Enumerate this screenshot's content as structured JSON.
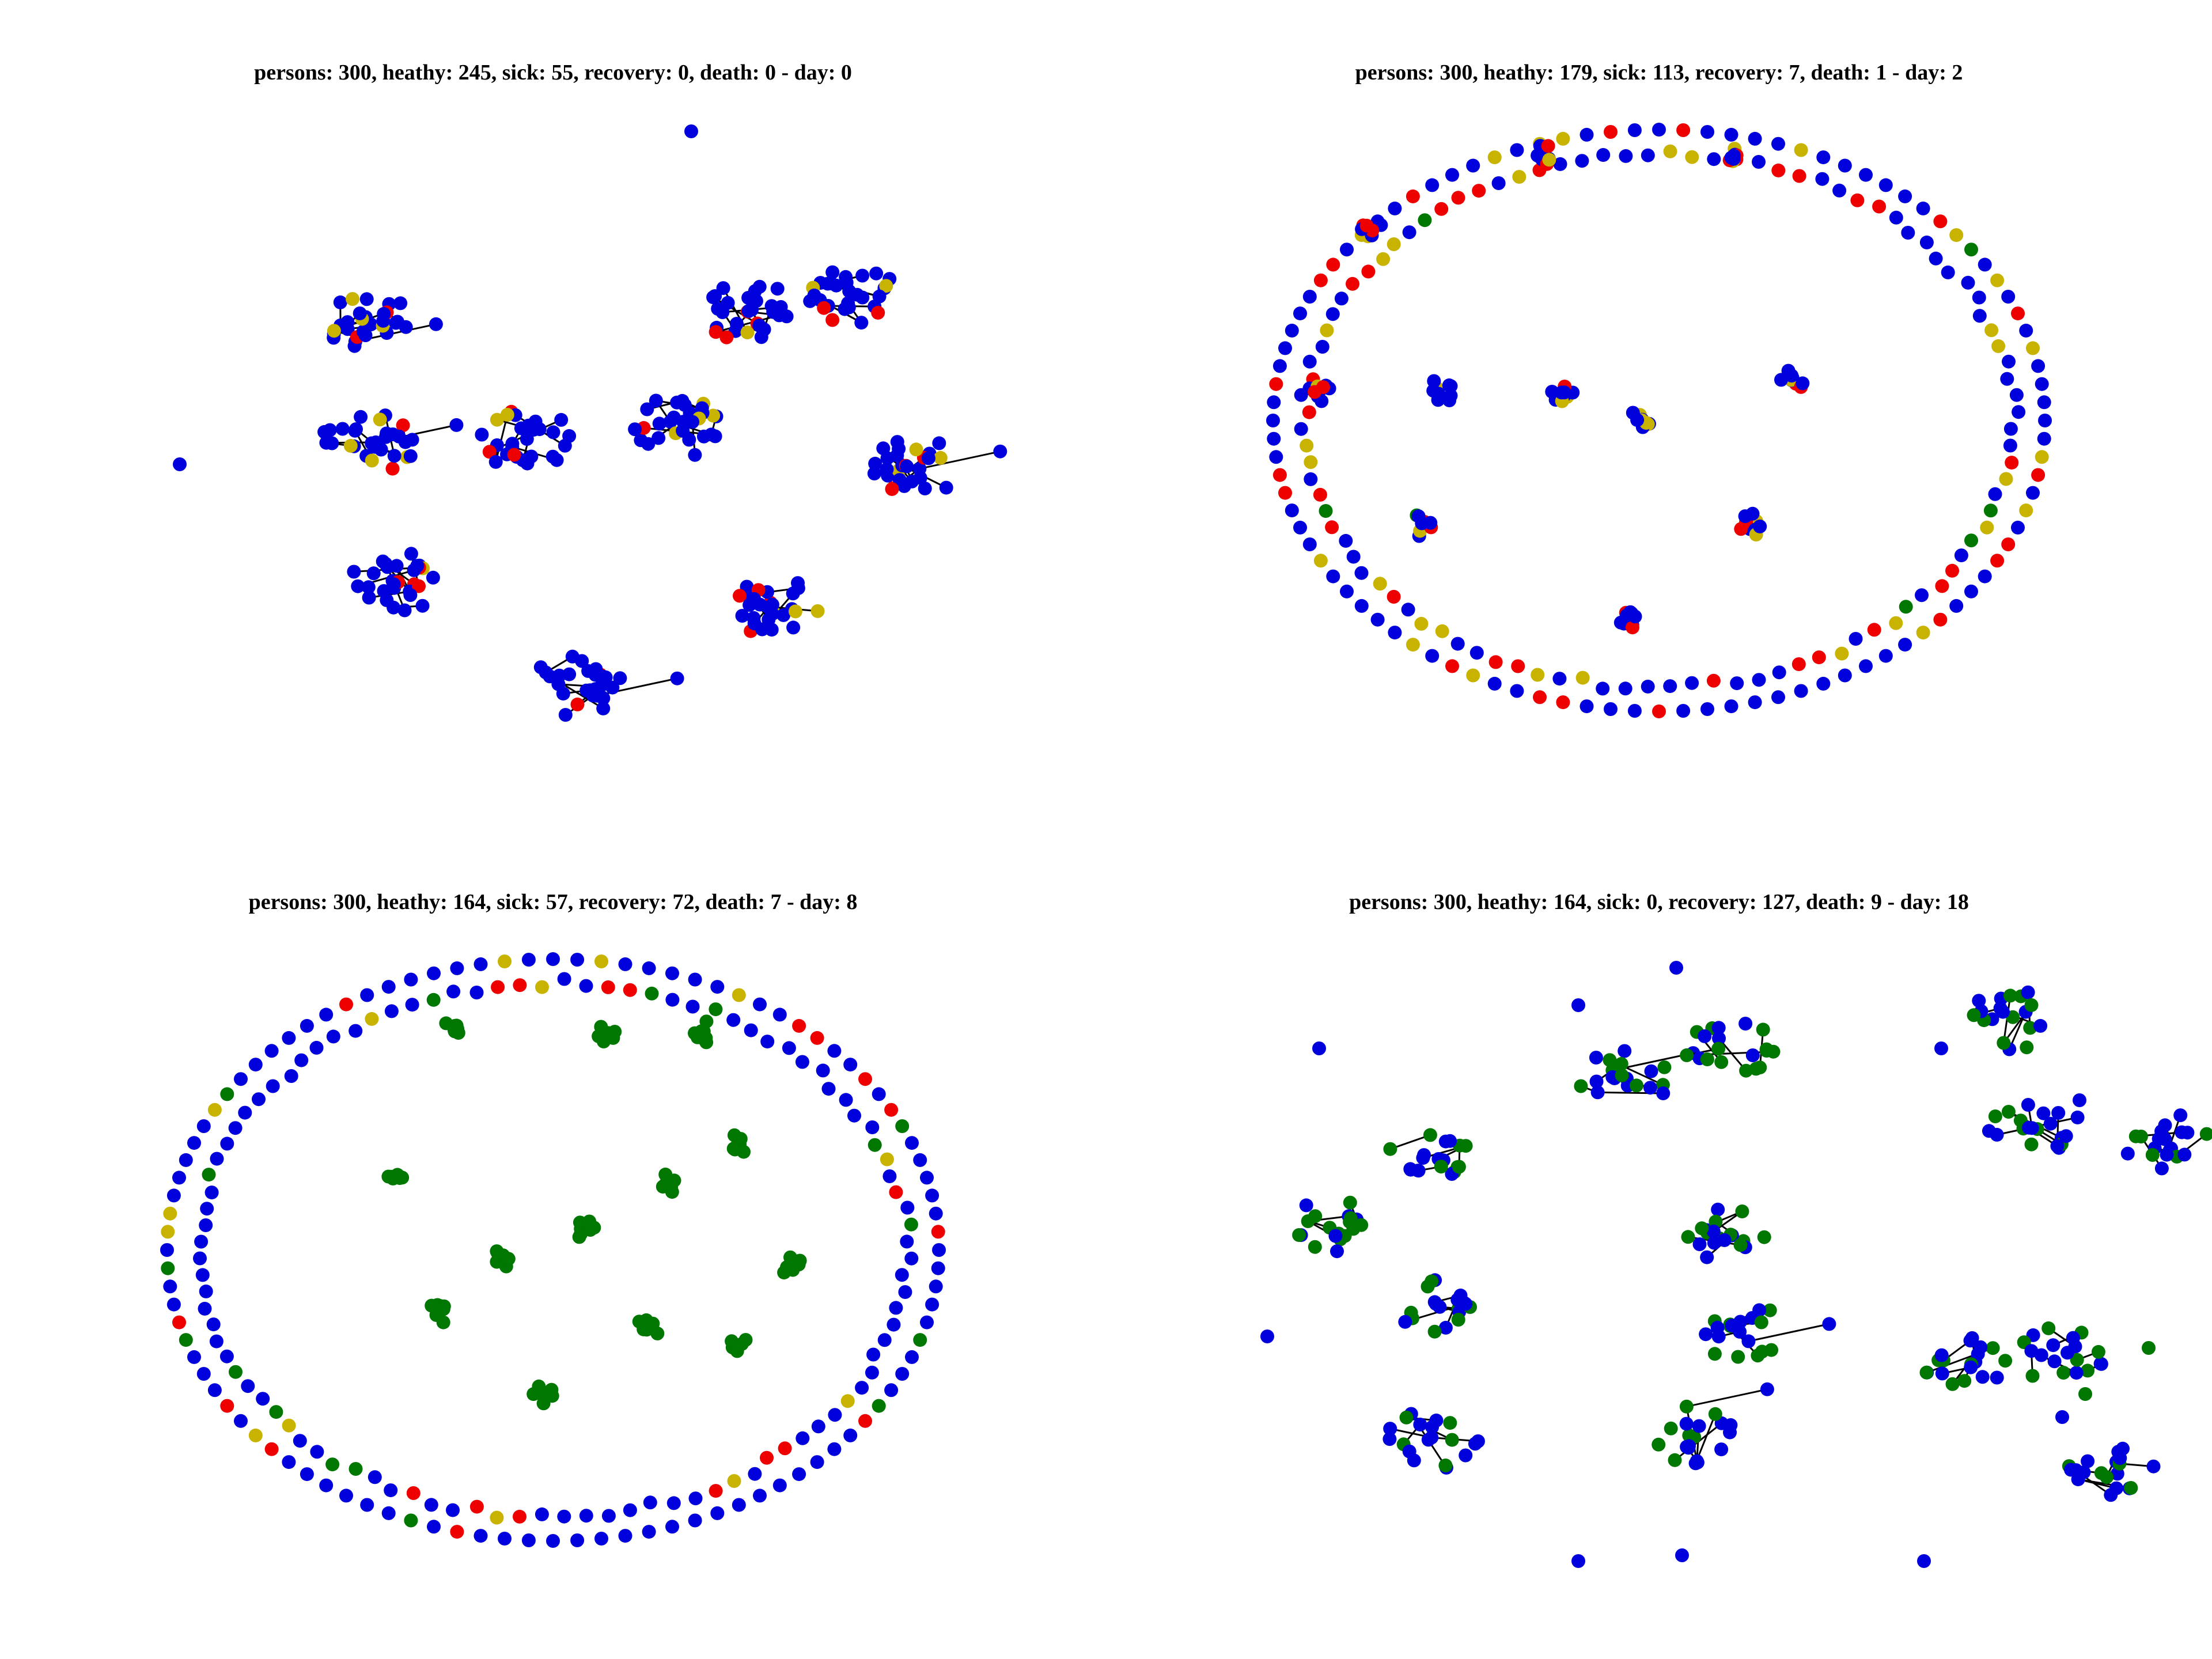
{
  "colors": {
    "healthy": "#0000dd",
    "sick": "#ee0000",
    "infected_new": "#c8b400",
    "recovered": "#007700",
    "edge": "#000000"
  },
  "panels": [
    {
      "title": "persons: 300, heathy: 245, sick: 55, recovery: 0, death: 0 - day: 0",
      "layout": "clusters",
      "persons": 300
    },
    {
      "title": "persons: 300, heathy: 179, sick: 113, recovery: 7, death: 1 - day: 2",
      "layout": "ring",
      "persons": 300
    },
    {
      "title": "persons: 300, heathy: 164, sick: 57, recovery: 72, death: 7 - day: 8",
      "layout": "ring",
      "persons": 300
    },
    {
      "title": "persons: 300, heathy: 164, sick: 0, recovery: 127, death: 9 - day: 18",
      "layout": "clusters",
      "persons": 300
    }
  ]
}
